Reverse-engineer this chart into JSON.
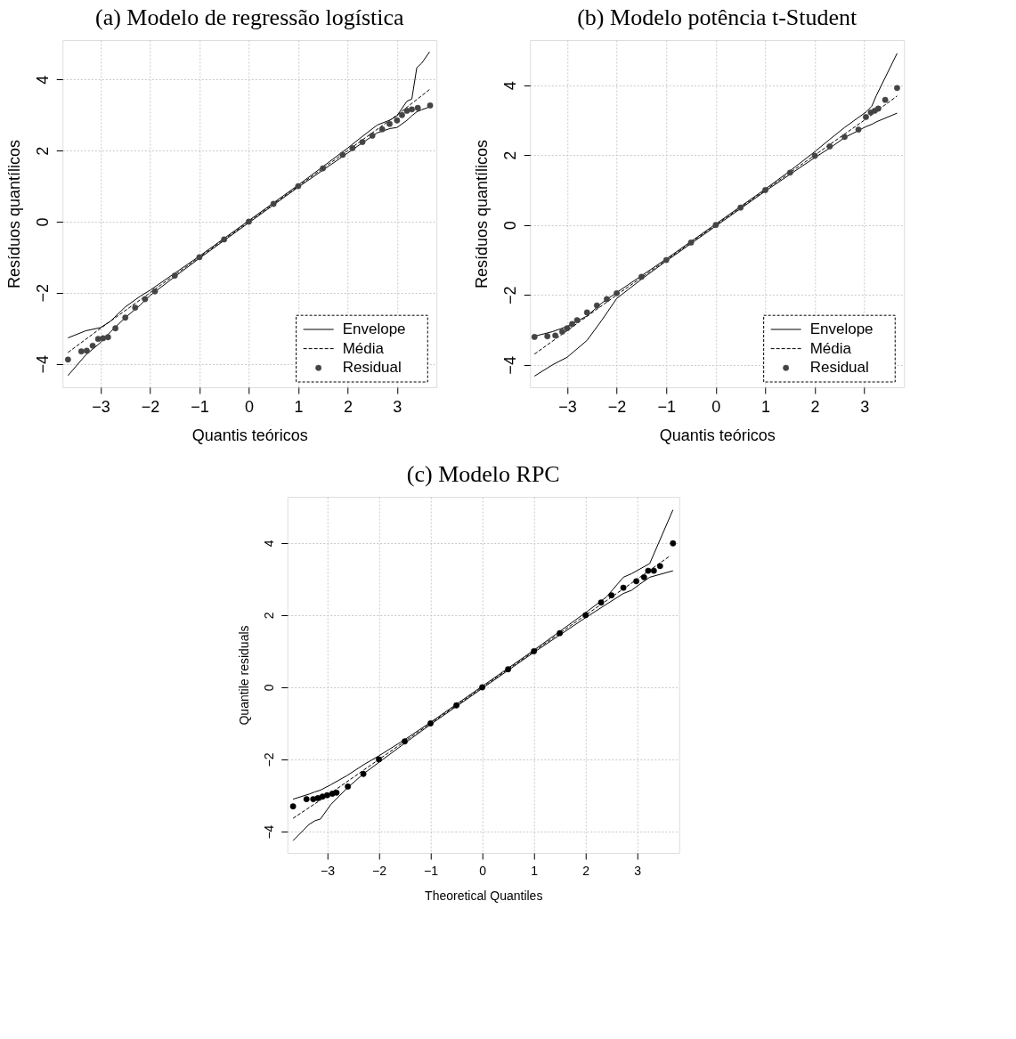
{
  "chart_data": [
    {
      "type": "scatter",
      "title": "(a) Modelo de regressão logística",
      "xlabel": "Quantis teóricos",
      "ylabel": "Resíduos quantílicos",
      "xlim": [
        -3.77,
        3.8
      ],
      "ylim": [
        -4.66,
        5.11
      ],
      "xticks": [
        -3,
        -2,
        -1,
        0,
        1,
        2,
        3
      ],
      "yticks": [
        -4,
        -2,
        0,
        2,
        4
      ],
      "grid": true,
      "legend": "bottom right",
      "series": [
        {
          "name": "Envelope",
          "type": "line",
          "color": "#000000",
          "line_style": "solid",
          "marker": "none",
          "x": [
            -3.66,
            -3.3,
            -3.0,
            -2.8,
            -2.5,
            -2.2,
            -2.0,
            -1.5,
            -1,
            0,
            1,
            1.5,
            2.0,
            2.3,
            2.6,
            2.86,
            3.0,
            3.2,
            3.3,
            3.4,
            3.5,
            3.66
          ],
          "values": [
            -3.27,
            -3.07,
            -2.98,
            -2.8,
            -2.4,
            -2.1,
            -1.93,
            -1.45,
            -0.97,
            0.03,
            1.03,
            1.55,
            2.07,
            2.4,
            2.72,
            2.86,
            2.98,
            3.39,
            3.45,
            4.33,
            4.46,
            4.78
          ]
        },
        {
          "type": "line",
          "color": "#000000",
          "line_style": "solid",
          "marker": "none",
          "x": [
            -3.66,
            -3.3,
            -3.0,
            -2.8,
            -2.5,
            -2.2,
            -2.0,
            -1.5,
            -1,
            0,
            1,
            1.5,
            2.0,
            2.3,
            2.6,
            2.86,
            3.0,
            3.2,
            3.3,
            3.4,
            3.5,
            3.66
          ],
          "values": [
            -4.33,
            -3.75,
            -3.4,
            -3.1,
            -2.7,
            -2.35,
            -2.08,
            -1.55,
            -1.03,
            -0.03,
            0.97,
            1.45,
            1.93,
            2.22,
            2.5,
            2.62,
            2.65,
            2.85,
            2.98,
            3.09,
            3.15,
            3.23
          ]
        },
        {
          "name": "Média",
          "type": "line",
          "color": "#000000",
          "line_style": "dashed",
          "marker": "none",
          "x": [
            -3.66,
            -3.0,
            -2.0,
            -1,
            0,
            1,
            2,
            3.0,
            3.66
          ],
          "values": [
            -3.68,
            -3.0,
            -2.0,
            -1,
            0,
            1,
            2,
            3.0,
            3.72
          ]
        },
        {
          "name": "Residual",
          "type": "scatter",
          "color": "#444444",
          "marker": "circle",
          "x": [
            -3.66,
            -3.39,
            -3.28,
            -3.16,
            -3.05,
            -2.95,
            -2.85,
            -2.7,
            -2.5,
            -2.3,
            -2.1,
            -1.9,
            -1.5,
            -1,
            -0.5,
            0,
            0.5,
            1,
            1.5,
            1.9,
            2.1,
            2.3,
            2.5,
            2.7,
            2.85,
            3.0,
            3.1,
            3.2,
            3.3,
            3.42,
            3.67
          ],
          "values": [
            -3.88,
            -3.65,
            -3.63,
            -3.49,
            -3.3,
            -3.28,
            -3.25,
            -3.0,
            -2.7,
            -2.42,
            -2.18,
            -1.96,
            -1.52,
            -1.0,
            -0.5,
            0,
            0.5,
            1.0,
            1.5,
            1.88,
            2.07,
            2.24,
            2.42,
            2.6,
            2.75,
            2.85,
            3.0,
            3.12,
            3.16,
            3.2,
            3.27
          ]
        }
      ]
    },
    {
      "type": "scatter",
      "title": "(b) Modelo potência t-Student",
      "xlabel": "Quantis teóricos",
      "ylabel": "Resíduos quantílicos",
      "xlim": [
        -3.75,
        3.8
      ],
      "ylim": [
        -4.64,
        5.29
      ],
      "xticks": [
        -3,
        -2,
        -1,
        0,
        1,
        2,
        3
      ],
      "yticks": [
        -4,
        -2,
        0,
        2,
        4
      ],
      "grid": true,
      "legend": "bottom right",
      "series": [
        {
          "name": "Envelope",
          "type": "line",
          "color": "#000000",
          "line_style": "solid",
          "marker": "none",
          "x": [
            -3.66,
            -3.3,
            -3.0,
            -2.6,
            -2.3,
            -2.0,
            -1.5,
            -1,
            0,
            1,
            1.5,
            2.0,
            2.3,
            2.6,
            3.04,
            3.15,
            3.24,
            3.66
          ],
          "values": [
            -3.18,
            -3.05,
            -2.9,
            -2.6,
            -2.23,
            -1.93,
            -1.45,
            -0.97,
            0.03,
            1.03,
            1.55,
            2.1,
            2.45,
            2.79,
            3.24,
            3.4,
            3.7,
            4.91
          ]
        },
        {
          "type": "line",
          "color": "#000000",
          "line_style": "solid",
          "marker": "none",
          "x": [
            -3.66,
            -3.3,
            -3.0,
            -2.6,
            -2.3,
            -2.0,
            -1.5,
            -1,
            0,
            1,
            1.5,
            2.0,
            2.3,
            2.6,
            3.04,
            3.15,
            3.24,
            3.66
          ],
          "values": [
            -4.32,
            -4.0,
            -3.78,
            -3.3,
            -2.72,
            -2.1,
            -1.55,
            -1.03,
            -0.03,
            0.97,
            1.45,
            1.93,
            2.2,
            2.5,
            2.82,
            2.88,
            2.95,
            3.2
          ]
        },
        {
          "name": "Média",
          "type": "line",
          "color": "#000000",
          "line_style": "dashed",
          "marker": "none",
          "x": [
            -3.66,
            -3.0,
            -2.0,
            -1,
            0,
            1,
            2,
            3.0,
            3.66
          ],
          "values": [
            -3.69,
            -3.02,
            -2.0,
            -1,
            0,
            1,
            2,
            3.0,
            3.69
          ]
        },
        {
          "name": "Residual",
          "type": "scatter",
          "color": "#444444",
          "marker": "circle",
          "x": [
            -3.66,
            -3.4,
            -3.24,
            -3.1,
            -3.0,
            -2.9,
            -2.8,
            -2.6,
            -2.4,
            -2.2,
            -2.0,
            -1.5,
            -1,
            -0.5,
            0,
            0.5,
            1,
            1.5,
            2.0,
            2.3,
            2.6,
            2.88,
            3.03,
            3.13,
            3.21,
            3.28,
            3.42,
            3.66
          ],
          "values": [
            -3.2,
            -3.18,
            -3.16,
            -3.05,
            -2.95,
            -2.83,
            -2.72,
            -2.5,
            -2.3,
            -2.12,
            -1.95,
            -1.48,
            -1.0,
            -0.5,
            0,
            0.5,
            1,
            1.5,
            1.98,
            2.25,
            2.52,
            2.73,
            3.09,
            3.22,
            3.27,
            3.33,
            3.58,
            3.92
          ]
        }
      ]
    },
    {
      "type": "scatter",
      "title": "(c) Modelo RPC",
      "xlabel": "Theoretical Quantiles",
      "ylabel": "Quantile residuals",
      "xlim": [
        -3.77,
        3.81
      ],
      "ylim": [
        -4.59,
        5.28
      ],
      "xticks": [
        -3,
        -2,
        -1,
        0,
        1,
        2,
        3
      ],
      "yticks": [
        -4,
        -2,
        0,
        2,
        4
      ],
      "grid": true,
      "series": [
        {
          "type": "line",
          "color": "#000000",
          "line_style": "solid",
          "marker": "none",
          "x": [
            -3.66,
            -3.35,
            -3.24,
            -3.13,
            -2.93,
            -2.62,
            -2.3,
            -2.0,
            -1.5,
            -1,
            0,
            1,
            1.5,
            2.0,
            2.4,
            2.73,
            2.89,
            3.04,
            3.24,
            3.69
          ],
          "values": [
            -3.1,
            -2.96,
            -2.9,
            -2.85,
            -2.7,
            -2.45,
            -2.15,
            -1.9,
            -1.45,
            -0.97,
            0.03,
            1.03,
            1.55,
            2.07,
            2.5,
            3.05,
            3.15,
            3.27,
            3.43,
            4.92
          ]
        },
        {
          "type": "line",
          "color": "#000000",
          "line_style": "solid",
          "marker": "none",
          "x": [
            -3.66,
            -3.35,
            -3.24,
            -3.13,
            -2.93,
            -2.62,
            -2.3,
            -2.0,
            -1.5,
            -1,
            0,
            1,
            1.5,
            2.0,
            2.4,
            2.73,
            2.89,
            3.04,
            3.24,
            3.69
          ],
          "values": [
            -4.25,
            -3.8,
            -3.7,
            -3.65,
            -3.25,
            -2.8,
            -2.4,
            -2.08,
            -1.55,
            -1.03,
            -0.03,
            0.97,
            1.45,
            1.93,
            2.3,
            2.6,
            2.69,
            2.85,
            3.05,
            3.23
          ]
        },
        {
          "type": "line",
          "color": "#000000",
          "line_style": "dashed",
          "marker": "none",
          "x": [
            -3.66,
            -3.0,
            -2.0,
            -1,
            0,
            1,
            2,
            3.0,
            3.64
          ],
          "values": [
            -3.63,
            -3.0,
            -2.0,
            -1,
            0,
            1,
            2,
            3.0,
            3.65
          ]
        },
        {
          "type": "scatter",
          "color": "#000000",
          "marker": "circle",
          "x": [
            -3.66,
            -3.4,
            -3.27,
            -3.18,
            -3.09,
            -3.0,
            -2.9,
            -2.82,
            -2.6,
            -2.3,
            -2.0,
            -1.5,
            -1,
            -0.5,
            0,
            0.5,
            1,
            1.5,
            2.0,
            2.3,
            2.5,
            2.73,
            2.98,
            3.13,
            3.21,
            3.32,
            3.44,
            3.69
          ],
          "values": [
            -3.3,
            -3.1,
            -3.1,
            -3.07,
            -3.03,
            -2.99,
            -2.95,
            -2.92,
            -2.75,
            -2.4,
            -2.0,
            -1.5,
            -1,
            -0.5,
            0,
            0.5,
            1,
            1.5,
            2.0,
            2.35,
            2.55,
            2.76,
            2.94,
            3.05,
            3.23,
            3.23,
            3.36,
            3.99
          ]
        }
      ]
    }
  ]
}
